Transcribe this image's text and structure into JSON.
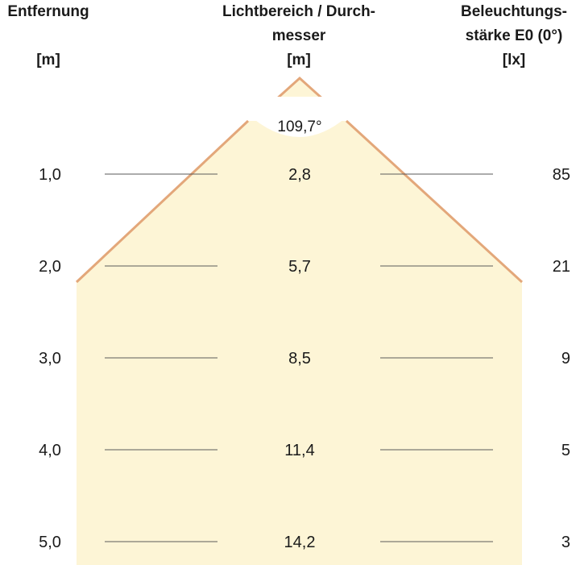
{
  "colors": {
    "beam_fill": "#fdf5d6",
    "beam_edge": "#e3a77a",
    "tick_line": "#5a5a5a",
    "text": "#1a1a1a"
  },
  "headers": {
    "distance": {
      "line1": "Entfernung",
      "line2": "",
      "unit": "[m]"
    },
    "diameter": {
      "line1": "Lichtbereich / Durch-",
      "line2": "messer",
      "unit": "[m]"
    },
    "illuminance": {
      "line1": "Beleuchtungs-",
      "line2": "stärke E0 (0°)",
      "unit": "[lx]"
    }
  },
  "beam_angle": "109,7°",
  "rows": [
    {
      "distance": "1,0",
      "diameter": "2,8",
      "illuminance": "85"
    },
    {
      "distance": "2,0",
      "diameter": "5,7",
      "illuminance": "21"
    },
    {
      "distance": "3,0",
      "diameter": "8,5",
      "illuminance": "9"
    },
    {
      "distance": "4,0",
      "diameter": "11,4",
      "illuminance": "5"
    },
    {
      "distance": "5,0",
      "diameter": "14,2",
      "illuminance": "3"
    }
  ]
}
